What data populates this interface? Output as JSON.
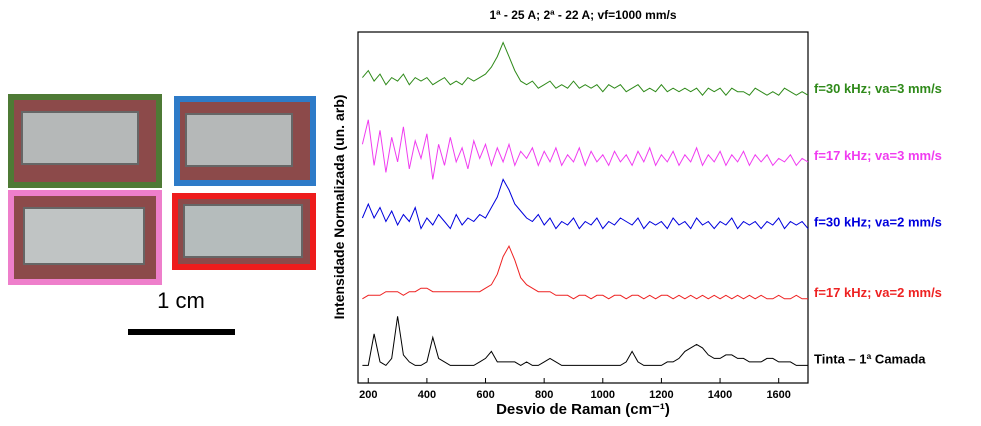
{
  "chart_data": {
    "type": "line",
    "title": "1ª - 25 A; 2ª - 22 A; vf=1000 mm/s",
    "x_label": "Desvio de Raman (cm⁻¹)",
    "y_label": "Intensidade Normalizada (un. arb)",
    "scale_label": "1 cm",
    "xlim": [
      165,
      1700
    ],
    "ylim": [
      0,
      100
    ],
    "xticks": [
      200,
      400,
      600,
      800,
      1000,
      1200,
      1400,
      1600
    ],
    "x": [
      180,
      200,
      220,
      240,
      260,
      280,
      300,
      320,
      340,
      360,
      380,
      400,
      420,
      440,
      460,
      480,
      500,
      520,
      540,
      560,
      580,
      600,
      620,
      640,
      660,
      680,
      700,
      720,
      740,
      760,
      780,
      800,
      820,
      840,
      860,
      880,
      900,
      920,
      940,
      960,
      980,
      1000,
      1020,
      1040,
      1060,
      1080,
      1100,
      1120,
      1140,
      1160,
      1180,
      1200,
      1220,
      1240,
      1260,
      1280,
      1300,
      1320,
      1340,
      1360,
      1380,
      1400,
      1420,
      1440,
      1460,
      1480,
      1500,
      1520,
      1540,
      1560,
      1580,
      1600,
      1620,
      1640,
      1660,
      1680,
      1700
    ],
    "series": [
      {
        "name": "f=30 kHz; va=3 mm/s",
        "color": "#2f8a1a",
        "values": [
          87,
          89,
          86,
          88,
          85,
          87,
          86,
          88,
          85,
          87,
          86,
          87,
          85,
          86,
          87,
          85,
          86,
          85,
          87,
          86,
          87,
          88,
          90,
          93,
          97,
          93,
          89,
          86,
          85,
          86,
          84,
          85,
          86,
          84,
          85,
          84,
          86,
          84,
          85,
          84,
          85,
          83,
          85,
          84,
          85,
          83,
          84,
          85,
          83,
          84,
          83,
          85,
          83,
          84,
          83,
          84,
          83,
          84,
          82,
          84,
          83,
          84,
          82,
          84,
          83,
          83,
          82,
          84,
          83,
          82,
          83,
          82,
          84,
          83,
          82,
          83,
          82
        ]
      },
      {
        "name": "f=17 kHz; va=3 mm/s",
        "color": "#f03cf0",
        "values": [
          68,
          75,
          62,
          72,
          60,
          70,
          63,
          73,
          61,
          69,
          64,
          71,
          58,
          68,
          62,
          70,
          63,
          67,
          61,
          69,
          64,
          68,
          62,
          67,
          63,
          68,
          62,
          66,
          64,
          67,
          62,
          66,
          63,
          67,
          62,
          65,
          63,
          67,
          62,
          66,
          63,
          65,
          62,
          66,
          63,
          65,
          62,
          66,
          63,
          67,
          62,
          65,
          63,
          66,
          62,
          65,
          63,
          67,
          62,
          65,
          63,
          66,
          62,
          65,
          63,
          66,
          62,
          65,
          63,
          65,
          62,
          64,
          63,
          65,
          62,
          64,
          63
        ]
      },
      {
        "name": "f=30 kHz; va=2 mm/s",
        "color": "#0000dd",
        "values": [
          47,
          51,
          47,
          50,
          46,
          49,
          45,
          48,
          46,
          50,
          44,
          47,
          45,
          48,
          46,
          44,
          48,
          45,
          47,
          46,
          48,
          47,
          50,
          53,
          58,
          55,
          51,
          49,
          47,
          46,
          48,
          45,
          47,
          44,
          46,
          45,
          47,
          44,
          46,
          45,
          47,
          44,
          46,
          45,
          47,
          46,
          45,
          47,
          44,
          46,
          45,
          46,
          44,
          47,
          45,
          46,
          44,
          47,
          45,
          46,
          44,
          46,
          45,
          47,
          44,
          46,
          45,
          46,
          44,
          46,
          45,
          47,
          44,
          46,
          45,
          46,
          44
        ]
      },
      {
        "name": "f=17 kHz; va=2 mm/s",
        "color": "#ee2222",
        "values": [
          24,
          25,
          25,
          25,
          26,
          26,
          26,
          25,
          26,
          26,
          27,
          27,
          26,
          26,
          26,
          26,
          26,
          26,
          26,
          26,
          26,
          27,
          28,
          31,
          36,
          39,
          35,
          30,
          28,
          27,
          26,
          26,
          26,
          25,
          25,
          25,
          24,
          25,
          25,
          24,
          25,
          25,
          24,
          25,
          25,
          24,
          25,
          25,
          24,
          25,
          24,
          25,
          25,
          24,
          25,
          24,
          25,
          24,
          25,
          24,
          25,
          24,
          25,
          24,
          25,
          24,
          25,
          24,
          25,
          24,
          24,
          25,
          24,
          24,
          25,
          24,
          24
        ]
      },
      {
        "name": "Tinta – 1ª Camada",
        "color": "#000000",
        "values": [
          5,
          5,
          14,
          6,
          5,
          7,
          19,
          8,
          6,
          5,
          5,
          6,
          13,
          7,
          6,
          5,
          5,
          5,
          5,
          5,
          6,
          7,
          9,
          6,
          6,
          6,
          6,
          5,
          6,
          5,
          5,
          6,
          7,
          6,
          5,
          5,
          5,
          5,
          5,
          5,
          5,
          5,
          5,
          5,
          5,
          6,
          9,
          6,
          5,
          5,
          5,
          5,
          6,
          6,
          7,
          9,
          10,
          11,
          10,
          8,
          7,
          7,
          8,
          8,
          7,
          7,
          6,
          6,
          6,
          7,
          7,
          6,
          6,
          6,
          5,
          5,
          5
        ]
      }
    ]
  }
}
